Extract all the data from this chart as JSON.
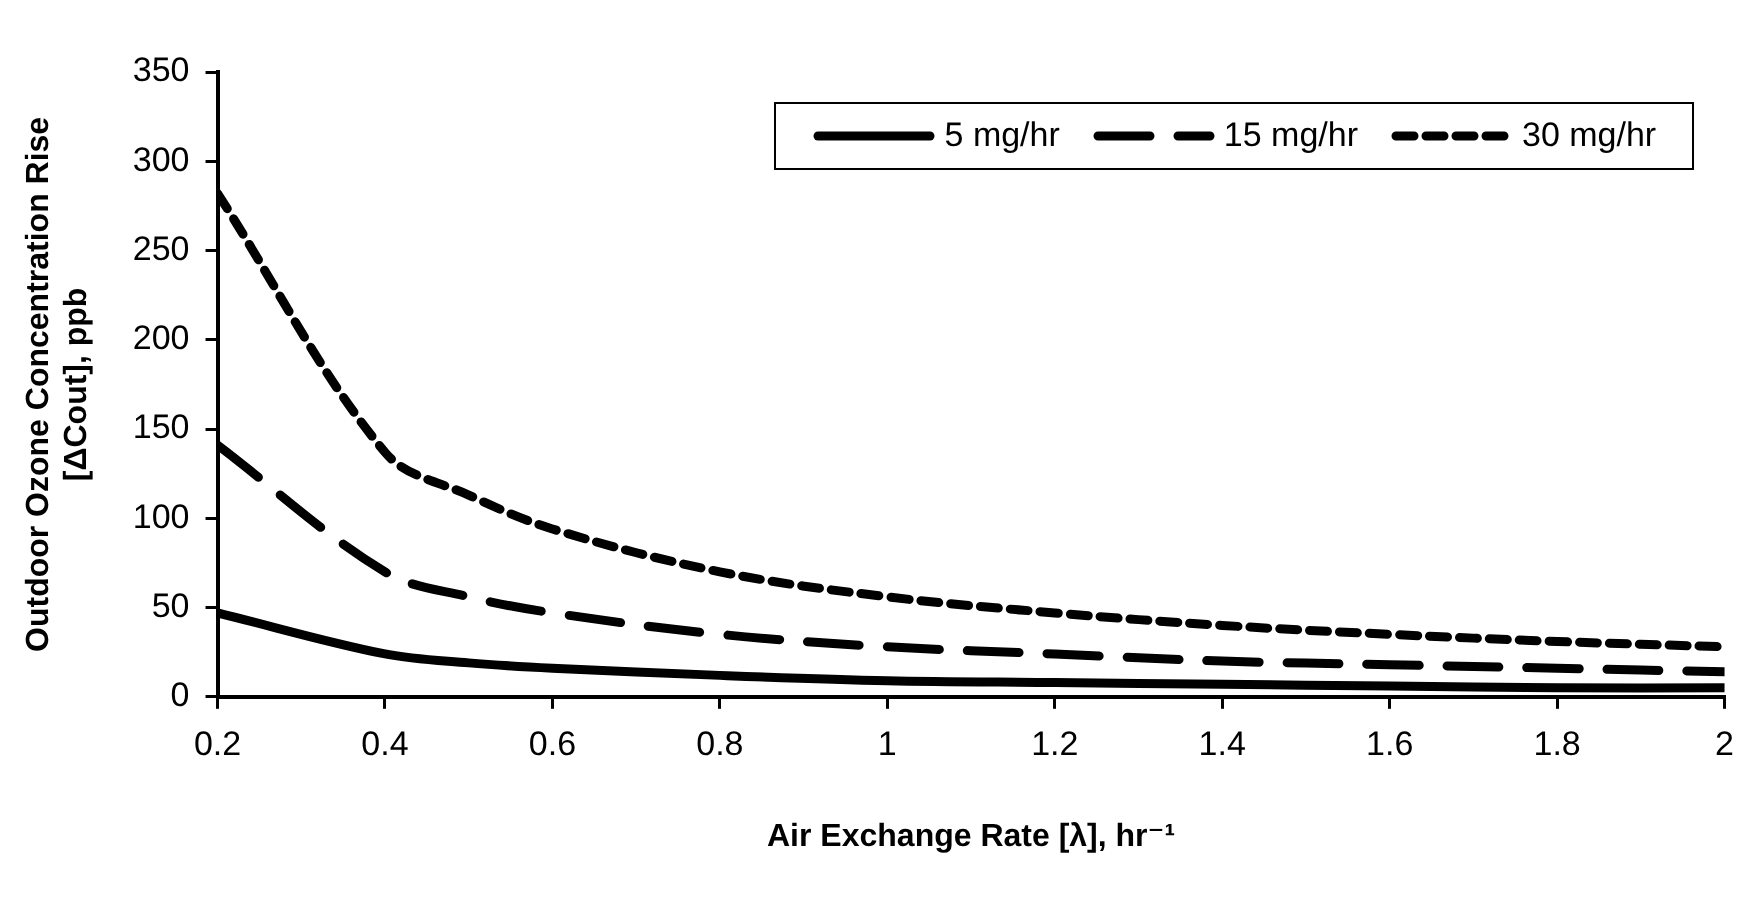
{
  "chart_data": {
    "type": "line",
    "xlabel": "Air Exchange Rate [λ], hr⁻¹",
    "ylabel": "Outdoor Ozone Concentration Rise\n[ΔCout], ppb",
    "x": [
      0.2,
      0.4,
      0.5,
      0.6,
      0.8,
      1.0,
      1.2,
      1.4,
      1.6,
      1.8,
      2.0
    ],
    "series": [
      {
        "name": "5 mg/hr",
        "color": "#000000",
        "line_style": "solid",
        "values": [
          47,
          24,
          19,
          16,
          12,
          9,
          8,
          7,
          6,
          5,
          5
        ]
      },
      {
        "name": "15 mg/hr",
        "color": "#000000",
        "line_style": "dashed",
        "values": [
          141,
          70,
          56,
          47,
          35,
          28,
          24,
          20,
          18,
          16,
          14
        ]
      },
      {
        "name": "30 mg/hr",
        "color": "#000000",
        "line_style": "dotted",
        "values": [
          282,
          137,
          113,
          94,
          70,
          56,
          47,
          40,
          35,
          31,
          28
        ]
      }
    ],
    "xlim": [
      0.2,
      2
    ],
    "xticks": [
      0.2,
      0.4,
      0.6,
      0.8,
      1,
      1.2,
      1.4,
      1.6,
      1.8,
      2
    ],
    "ylim": [
      0,
      350
    ],
    "yticks": [
      0,
      50,
      100,
      150,
      200,
      250,
      300,
      350
    ],
    "grid": false,
    "legend": "top right",
    "marker": "none"
  }
}
